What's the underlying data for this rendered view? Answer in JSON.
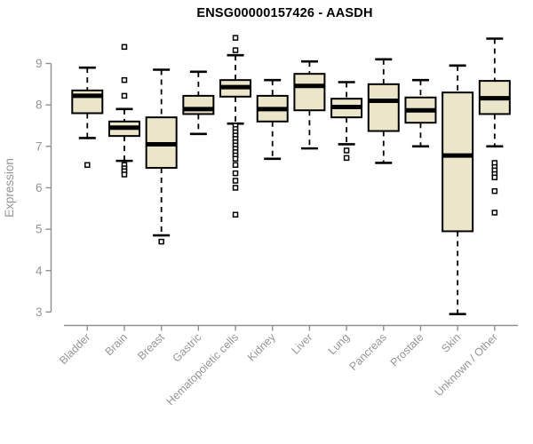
{
  "title": "ENSG00000157426 - AASDH",
  "chart_data": {
    "type": "box",
    "title": "ENSG00000157426 - AASDH",
    "xlabel": "",
    "ylabel": "Expression",
    "ylim": [
      3,
      9
    ],
    "yticks": [
      3,
      4,
      5,
      6,
      7,
      8,
      9
    ],
    "grid": false,
    "legend": "none",
    "categories": [
      "Bladder",
      "Brain",
      "Breast",
      "Gastric",
      "Hematopoietic cells",
      "Kidney",
      "Liver",
      "Lung",
      "Pancreas",
      "Prostate",
      "Skin",
      "Unknown / Other"
    ],
    "series": [
      {
        "name": "Bladder",
        "low": 7.2,
        "q1": 7.8,
        "median": 8.22,
        "q3": 8.35,
        "high": 8.9,
        "outliers": [
          6.55
        ]
      },
      {
        "name": "Brain",
        "low": 6.65,
        "q1": 7.25,
        "median": 7.45,
        "q3": 7.6,
        "high": 7.9,
        "outliers": [
          9.4,
          8.6,
          8.22,
          6.55,
          6.47,
          6.4,
          6.32
        ]
      },
      {
        "name": "Breast",
        "low": 4.85,
        "q1": 6.48,
        "median": 7.05,
        "q3": 7.7,
        "high": 8.85,
        "outliers": [
          4.7
        ]
      },
      {
        "name": "Gastric",
        "low": 7.3,
        "q1": 7.78,
        "median": 7.9,
        "q3": 8.22,
        "high": 8.8,
        "outliers": []
      },
      {
        "name": "Hematopoietic cells",
        "low": 7.55,
        "q1": 8.2,
        "median": 8.43,
        "q3": 8.6,
        "high": 9.2,
        "outliers": [
          9.62,
          9.32,
          7.5,
          7.42,
          7.34,
          7.26,
          7.18,
          7.1,
          7.02,
          6.94,
          6.86,
          6.78,
          6.7,
          6.55,
          6.35,
          6.17,
          6.0,
          5.35
        ]
      },
      {
        "name": "Kidney",
        "low": 6.7,
        "q1": 7.6,
        "median": 7.9,
        "q3": 8.22,
        "high": 8.6,
        "outliers": []
      },
      {
        "name": "Liver",
        "low": 6.95,
        "q1": 7.87,
        "median": 8.46,
        "q3": 8.75,
        "high": 9.05,
        "outliers": []
      },
      {
        "name": "Lung",
        "low": 7.05,
        "q1": 7.7,
        "median": 7.95,
        "q3": 8.15,
        "high": 8.55,
        "outliers": [
          6.9,
          6.72
        ]
      },
      {
        "name": "Pancreas",
        "low": 6.6,
        "q1": 7.37,
        "median": 8.1,
        "q3": 8.5,
        "high": 9.1,
        "outliers": []
      },
      {
        "name": "Prostate",
        "low": 7.0,
        "q1": 7.57,
        "median": 7.87,
        "q3": 8.18,
        "high": 8.6,
        "outliers": []
      },
      {
        "name": "Skin",
        "low": 2.95,
        "q1": 4.95,
        "median": 6.78,
        "q3": 8.3,
        "high": 8.95,
        "outliers": []
      },
      {
        "name": "Unknown / Other",
        "low": 7.0,
        "q1": 7.78,
        "median": 8.16,
        "q3": 8.58,
        "high": 9.6,
        "outliers": [
          6.6,
          6.5,
          6.42,
          6.33,
          6.25,
          5.92,
          5.4
        ]
      }
    ],
    "colors": {
      "box_fill": "#EBE5C9",
      "box_border": "#000000",
      "median": "#000000",
      "whisker": "#000000",
      "axis": "#909090",
      "tick_label": "#969696",
      "axis_label": "#969696",
      "title": "#000000",
      "background": "#FFFFFF"
    }
  }
}
